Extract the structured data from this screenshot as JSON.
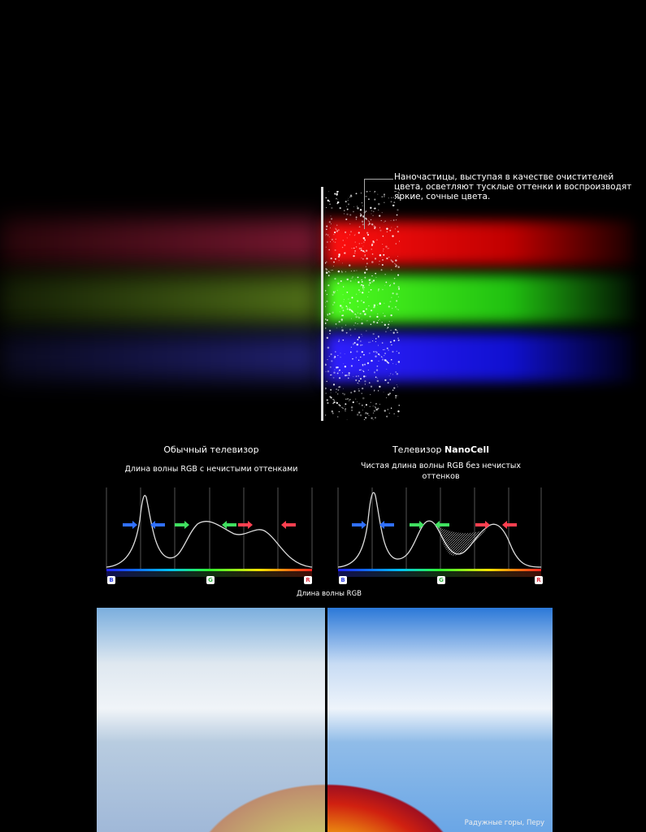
{
  "callout": {
    "text": "Наночастицы, выступая в качестве очистителей цвета, осветляют тусклые оттенки и воспроизводят яркие, сочные цвета."
  },
  "colors": {
    "red": "#e01010",
    "green": "#30c020",
    "blue": "#1818e0",
    "background": "#000000"
  },
  "comparison": {
    "left": {
      "title": "Обычный телевизор",
      "subtitle": "Длина волны RGB с нечистыми оттенками"
    },
    "right": {
      "title_prefix": "Телевизор ",
      "title_brand": "NanoCell",
      "subtitle": "Чистая длина волны RGB без нечистых оттенков"
    },
    "axis_labels": {
      "b": "B",
      "g": "G",
      "r": "R"
    },
    "axis_title": "Длина волны RGB"
  },
  "photo": {
    "caption": "Радужные горы, Перу"
  }
}
